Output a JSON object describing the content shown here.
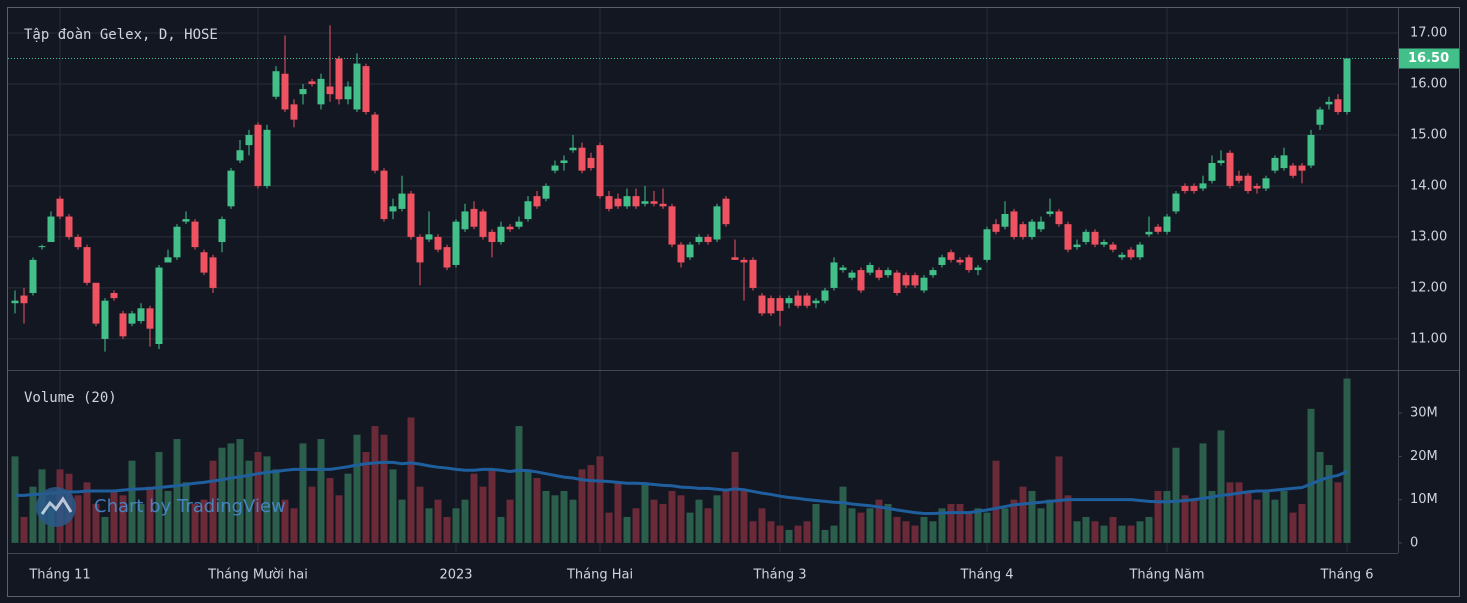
{
  "chart_data": {
    "type": "candlestick",
    "title": "Tập đoàn Gelex, D, HOSE",
    "volume_title": "Volume (20)",
    "watermark": "Chart by TradingView",
    "up_color": "#43c08a",
    "down_color": "#ef5361",
    "categories": [
      null,
      null,
      null,
      null,
      null,
      "Tháng 11",
      null,
      null,
      null,
      null,
      null,
      null,
      null,
      null,
      null,
      null,
      null,
      null,
      null,
      null,
      null,
      null,
      null,
      null,
      null,
      null,
      null,
      "Tháng Mười hai",
      null,
      null,
      null,
      null,
      null,
      null,
      null,
      null,
      null,
      null,
      null,
      null,
      null,
      null,
      null,
      null,
      null,
      null,
      null,
      null,
      null,
      "2023",
      null,
      null,
      null,
      null,
      null,
      null,
      null,
      null,
      null,
      null,
      null,
      null,
      null,
      null,
      null,
      "Tháng Hai",
      null,
      null,
      null,
      null,
      null,
      null,
      null,
      null,
      null,
      null,
      null,
      null,
      null,
      null,
      null,
      null,
      null,
      null,
      null,
      "Tháng 3",
      null,
      null,
      null,
      null,
      null,
      null,
      null,
      null,
      null,
      null,
      null,
      null,
      null,
      null,
      null,
      null,
      null,
      null,
      null,
      null,
      null,
      null,
      "Tháng 4",
      null,
      null,
      null,
      null,
      null,
      null,
      null,
      null,
      null,
      null,
      null,
      null,
      null,
      null,
      null,
      null,
      null,
      null,
      null,
      "Tháng Năm",
      null,
      null,
      null,
      null,
      null,
      null,
      null,
      null,
      null,
      null,
      null,
      null,
      null,
      null,
      null,
      null,
      null,
      null,
      null,
      "Tháng 6"
    ],
    "ohlc": [
      [
        11.7,
        11.95,
        11.5,
        11.75
      ],
      [
        11.85,
        12.0,
        11.3,
        11.7
      ],
      [
        11.9,
        12.6,
        11.85,
        12.55
      ],
      [
        12.8,
        12.85,
        12.75,
        12.82
      ],
      [
        12.9,
        13.5,
        12.9,
        13.4
      ],
      [
        13.75,
        13.8,
        13.35,
        13.4
      ],
      [
        13.4,
        13.45,
        12.95,
        13.0
      ],
      [
        13.0,
        13.05,
        12.75,
        12.8
      ],
      [
        12.8,
        12.85,
        12.05,
        12.1
      ],
      [
        12.1,
        12.1,
        11.25,
        11.3
      ],
      [
        11.0,
        11.8,
        10.75,
        11.75
      ],
      [
        11.9,
        11.95,
        11.75,
        11.8
      ],
      [
        11.5,
        11.55,
        11.0,
        11.05
      ],
      [
        11.3,
        11.55,
        11.25,
        11.5
      ],
      [
        11.35,
        11.7,
        11.3,
        11.6
      ],
      [
        11.6,
        11.65,
        10.85,
        11.2
      ],
      [
        10.9,
        12.45,
        10.8,
        12.4
      ],
      [
        12.5,
        12.75,
        12.5,
        12.6
      ],
      [
        12.6,
        13.25,
        12.55,
        13.2
      ],
      [
        13.3,
        13.5,
        13.25,
        13.35
      ],
      [
        13.3,
        13.35,
        12.75,
        12.8
      ],
      [
        12.7,
        12.75,
        12.25,
        12.3
      ],
      [
        12.6,
        12.65,
        11.9,
        12.0
      ],
      [
        12.9,
        13.4,
        12.7,
        13.35
      ],
      [
        13.6,
        14.35,
        13.55,
        14.3
      ],
      [
        14.5,
        14.9,
        14.45,
        14.7
      ],
      [
        14.8,
        15.1,
        14.6,
        15.0
      ],
      [
        15.2,
        15.25,
        13.95,
        14.0
      ],
      [
        14.0,
        15.2,
        13.95,
        15.1
      ],
      [
        15.75,
        16.35,
        15.7,
        16.25
      ],
      [
        16.2,
        16.95,
        15.45,
        15.5
      ],
      [
        15.6,
        15.7,
        15.15,
        15.3
      ],
      [
        15.8,
        16.0,
        15.6,
        15.9
      ],
      [
        16.05,
        16.1,
        15.95,
        16.0
      ],
      [
        15.6,
        16.2,
        15.5,
        16.1
      ],
      [
        15.95,
        17.15,
        15.65,
        15.8
      ],
      [
        16.5,
        16.55,
        15.6,
        15.7
      ],
      [
        15.7,
        16.05,
        15.6,
        15.95
      ],
      [
        15.5,
        16.6,
        15.45,
        16.4
      ],
      [
        16.35,
        16.4,
        15.4,
        15.45
      ],
      [
        15.4,
        15.45,
        14.25,
        14.3
      ],
      [
        14.3,
        14.35,
        13.3,
        13.35
      ],
      [
        13.5,
        13.75,
        13.35,
        13.6
      ],
      [
        13.55,
        14.2,
        13.5,
        13.85
      ],
      [
        13.85,
        13.9,
        12.95,
        13.0
      ],
      [
        13.0,
        13.05,
        12.05,
        12.5
      ],
      [
        12.95,
        13.5,
        12.9,
        13.05
      ],
      [
        13.0,
        13.05,
        12.7,
        12.75
      ],
      [
        12.8,
        12.85,
        12.35,
        12.4
      ],
      [
        12.45,
        13.35,
        12.4,
        13.3
      ],
      [
        13.15,
        13.65,
        13.1,
        13.5
      ],
      [
        13.55,
        13.7,
        13.15,
        13.2
      ],
      [
        13.5,
        13.55,
        12.95,
        13.0
      ],
      [
        13.1,
        13.15,
        12.6,
        12.9
      ],
      [
        12.9,
        13.3,
        12.85,
        13.2
      ],
      [
        13.2,
        13.25,
        13.1,
        13.15
      ],
      [
        13.2,
        13.4,
        13.15,
        13.3
      ],
      [
        13.35,
        13.8,
        13.3,
        13.7
      ],
      [
        13.8,
        13.9,
        13.55,
        13.6
      ],
      [
        13.75,
        14.05,
        13.7,
        14.0
      ],
      [
        14.3,
        14.5,
        14.25,
        14.4
      ],
      [
        14.45,
        14.6,
        14.3,
        14.5
      ],
      [
        14.7,
        15.0,
        14.65,
        14.75
      ],
      [
        14.75,
        14.85,
        14.25,
        14.3
      ],
      [
        14.55,
        14.65,
        14.3,
        14.35
      ],
      [
        14.8,
        14.85,
        13.75,
        13.8
      ],
      [
        13.8,
        13.9,
        13.5,
        13.55
      ],
      [
        13.75,
        13.85,
        13.55,
        13.6
      ],
      [
        13.6,
        13.95,
        13.55,
        13.8
      ],
      [
        13.8,
        13.95,
        13.55,
        13.6
      ],
      [
        13.65,
        14.0,
        13.6,
        13.7
      ],
      [
        13.7,
        13.9,
        13.6,
        13.65
      ],
      [
        13.65,
        13.95,
        13.55,
        13.6
      ],
      [
        13.6,
        13.65,
        12.8,
        12.85
      ],
      [
        12.85,
        12.9,
        12.4,
        12.5
      ],
      [
        12.6,
        12.9,
        12.55,
        12.85
      ],
      [
        12.9,
        13.05,
        12.85,
        13.0
      ],
      [
        13.0,
        13.05,
        12.85,
        12.9
      ],
      [
        12.95,
        13.65,
        12.9,
        13.6
      ],
      [
        13.75,
        13.8,
        13.2,
        13.25
      ],
      [
        12.6,
        12.95,
        12.55,
        12.55
      ],
      [
        12.55,
        12.6,
        11.75,
        12.5
      ],
      [
        12.55,
        12.6,
        11.95,
        12.0
      ],
      [
        11.85,
        11.9,
        11.45,
        11.5
      ],
      [
        11.8,
        11.85,
        11.45,
        11.5
      ],
      [
        11.8,
        11.85,
        11.25,
        11.55
      ],
      [
        11.7,
        11.85,
        11.6,
        11.8
      ],
      [
        11.85,
        11.95,
        11.6,
        11.65
      ],
      [
        11.85,
        11.9,
        11.6,
        11.65
      ],
      [
        11.7,
        11.8,
        11.6,
        11.75
      ],
      [
        11.75,
        12.0,
        11.7,
        11.95
      ],
      [
        12.0,
        12.6,
        11.95,
        12.5
      ],
      [
        12.35,
        12.45,
        12.3,
        12.4
      ],
      [
        12.2,
        12.35,
        12.15,
        12.3
      ],
      [
        12.35,
        12.4,
        11.9,
        11.95
      ],
      [
        12.3,
        12.5,
        12.25,
        12.45
      ],
      [
        12.35,
        12.4,
        12.15,
        12.2
      ],
      [
        12.25,
        12.4,
        12.2,
        12.35
      ],
      [
        12.3,
        12.35,
        11.85,
        11.9
      ],
      [
        12.25,
        12.3,
        12.0,
        12.05
      ],
      [
        12.25,
        12.3,
        12.0,
        12.05
      ],
      [
        11.95,
        12.25,
        11.9,
        12.2
      ],
      [
        12.25,
        12.4,
        12.2,
        12.35
      ],
      [
        12.45,
        12.65,
        12.4,
        12.6
      ],
      [
        12.7,
        12.75,
        12.5,
        12.55
      ],
      [
        12.55,
        12.6,
        12.45,
        12.5
      ],
      [
        12.6,
        12.65,
        12.3,
        12.35
      ],
      [
        12.35,
        12.45,
        12.25,
        12.4
      ],
      [
        12.55,
        13.2,
        12.5,
        13.15
      ],
      [
        13.25,
        13.35,
        13.05,
        13.1
      ],
      [
        13.2,
        13.7,
        13.15,
        13.45
      ],
      [
        13.5,
        13.55,
        12.95,
        13.0
      ],
      [
        13.25,
        13.3,
        12.95,
        13.0
      ],
      [
        13.0,
        13.35,
        12.95,
        13.3
      ],
      [
        13.15,
        13.4,
        13.1,
        13.3
      ],
      [
        13.45,
        13.75,
        13.4,
        13.5
      ],
      [
        13.5,
        13.55,
        13.2,
        13.25
      ],
      [
        13.25,
        13.3,
        12.7,
        12.75
      ],
      [
        12.8,
        12.95,
        12.75,
        12.85
      ],
      [
        12.9,
        13.15,
        12.85,
        13.1
      ],
      [
        13.1,
        13.15,
        12.8,
        12.85
      ],
      [
        12.85,
        12.95,
        12.8,
        12.9
      ],
      [
        12.85,
        12.9,
        12.7,
        12.75
      ],
      [
        12.6,
        12.7,
        12.55,
        12.65
      ],
      [
        12.75,
        12.8,
        12.55,
        12.6
      ],
      [
        12.6,
        12.9,
        12.55,
        12.85
      ],
      [
        13.05,
        13.4,
        13.0,
        13.1
      ],
      [
        13.2,
        13.25,
        13.05,
        13.1
      ],
      [
        13.1,
        13.45,
        13.05,
        13.4
      ],
      [
        13.5,
        13.9,
        13.45,
        13.85
      ],
      [
        14.0,
        14.05,
        13.85,
        13.9
      ],
      [
        14.0,
        14.05,
        13.85,
        13.9
      ],
      [
        13.95,
        14.2,
        13.9,
        14.05
      ],
      [
        14.1,
        14.6,
        14.05,
        14.45
      ],
      [
        14.45,
        14.7,
        14.4,
        14.5
      ],
      [
        14.65,
        14.7,
        13.95,
        14.0
      ],
      [
        14.2,
        14.3,
        14.05,
        14.1
      ],
      [
        14.2,
        14.25,
        13.85,
        13.9
      ],
      [
        14.0,
        14.05,
        13.85,
        13.95
      ],
      [
        13.95,
        14.2,
        13.9,
        14.15
      ],
      [
        14.3,
        14.6,
        14.25,
        14.55
      ],
      [
        14.35,
        14.75,
        14.3,
        14.6
      ],
      [
        14.4,
        14.45,
        14.15,
        14.2
      ],
      [
        14.4,
        14.45,
        14.05,
        14.3
      ],
      [
        14.4,
        15.1,
        14.35,
        15.0
      ],
      [
        15.2,
        15.55,
        15.1,
        15.5
      ],
      [
        15.6,
        15.75,
        15.5,
        15.65
      ],
      [
        15.7,
        15.8,
        15.4,
        15.45
      ],
      [
        15.45,
        16.5,
        15.4,
        16.5
      ]
    ],
    "ylim": [
      10.39,
      17.49
    ],
    "yticks": [
      {
        "value": 17,
        "label": "17.00"
      },
      {
        "value": 16,
        "label": "16.00"
      },
      {
        "value": 15,
        "label": "15.00"
      },
      {
        "value": 14,
        "label": "14.00"
      },
      {
        "value": 13,
        "label": "13.00"
      },
      {
        "value": 12,
        "label": "12.00"
      },
      {
        "value": 11,
        "label": "11.00"
      }
    ],
    "last_price_label": "16.50",
    "volumes": [
      20,
      6,
      13,
      17,
      8,
      17,
      16,
      11,
      14,
      9,
      6,
      12,
      11,
      19,
      9,
      13,
      21,
      12,
      24,
      14,
      9,
      10,
      19,
      22,
      23,
      24,
      19,
      21,
      20,
      17,
      10,
      8,
      23,
      13,
      24,
      15,
      11,
      16,
      25,
      21,
      27,
      25,
      17,
      10,
      29,
      13,
      8,
      10,
      6,
      8,
      10,
      16,
      13,
      17,
      6,
      10,
      27,
      17,
      15,
      12,
      11,
      12,
      10,
      17,
      18,
      20,
      7,
      14,
      6,
      8,
      14,
      10,
      9,
      12,
      11,
      7,
      10,
      8,
      11,
      12,
      21,
      12,
      5,
      8,
      5,
      4,
      3,
      4,
      5,
      9,
      3,
      4,
      13,
      8,
      7,
      8,
      10,
      9,
      6,
      5,
      4,
      6,
      5,
      8,
      9,
      9,
      7,
      8,
      7,
      19,
      8,
      10,
      13,
      12,
      8,
      10,
      20,
      11,
      5,
      6,
      5,
      4,
      6,
      4,
      4,
      5,
      6,
      12,
      12,
      22,
      11,
      10,
      23,
      12,
      26,
      14,
      14,
      12,
      10,
      12,
      10,
      12,
      7,
      9,
      31,
      21,
      18,
      14,
      38
    ],
    "volume_ma": [
      11,
      11,
      11.2,
      11.3,
      11.5,
      11.6,
      11.8,
      11.8,
      12,
      12,
      12,
      12,
      12.2,
      12.4,
      12.5,
      12.6,
      12.8,
      13,
      13.2,
      13.5,
      13.8,
      14,
      14.3,
      14.6,
      15,
      15.3,
      15.6,
      16,
      16.3,
      16.5,
      16.8,
      17,
      17,
      17,
      17,
      17,
      17.3,
      17.6,
      18,
      18.3,
      18.5,
      18.6,
      18.6,
      18.3,
      18.5,
      18.2,
      17.8,
      17.5,
      17.3,
      17,
      16.8,
      16.8,
      17,
      17,
      16.8,
      16.5,
      16.8,
      16.7,
      16.4,
      16,
      15.6,
      15.2,
      15,
      14.6,
      14.4,
      14.3,
      14.2,
      14,
      13.8,
      13.8,
      13.7,
      13.5,
      13.3,
      13.2,
      12.9,
      12.8,
      12.6,
      12.6,
      12.4,
      12.2,
      12.5,
      12.3,
      11.9,
      11.5,
      11.2,
      10.8,
      10.5,
      10.3,
      10,
      9.8,
      9.6,
      9.4,
      9.3,
      9,
      8.8,
      8.6,
      8.3,
      8,
      7.6,
      7.3,
      7,
      6.8,
      6.8,
      6.9,
      7,
      7,
      7,
      7.3,
      7.6,
      8,
      8.4,
      8.8,
      9,
      9.2,
      9.4,
      9.6,
      9.8,
      10,
      10,
      10,
      10,
      10,
      10,
      10,
      10,
      9.8,
      9.6,
      9.5,
      9.5,
      9.6,
      9.8,
      10,
      10.3,
      10.6,
      11,
      11.2,
      11.5,
      11.8,
      12,
      12,
      12.2,
      12.4,
      12.6,
      12.8,
      13.6,
      14.5,
      15.2,
      15.6,
      16.5
    ],
    "vlim": [
      -2.1,
      39.5
    ],
    "vticks": [
      {
        "value": 30,
        "label": "30M"
      },
      {
        "value": 20,
        "label": "20M"
      },
      {
        "value": 10,
        "label": "10M"
      },
      0
    ]
  }
}
